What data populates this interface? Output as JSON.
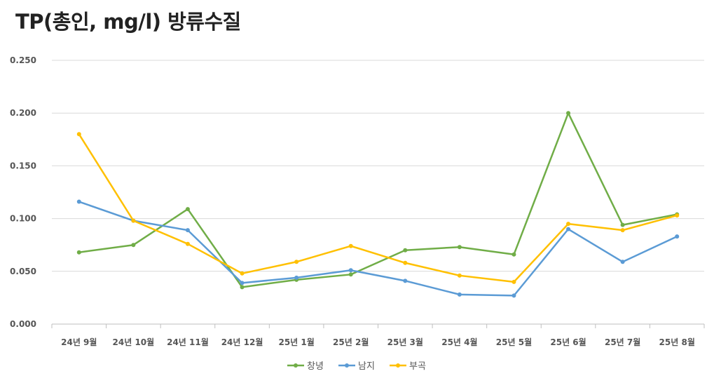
{
  "chart_data": {
    "type": "line",
    "title": "TP(총인, mg/l) 방류수질",
    "xlabel": "",
    "ylabel": "",
    "ylim": [
      0,
      0.25
    ],
    "yticks": [
      "0.000",
      "0.050",
      "0.100",
      "0.150",
      "0.200",
      "0.250"
    ],
    "grid": true,
    "legend": "bottom",
    "categories": [
      "24년 9월",
      "24년 10월",
      "24년 11월",
      "24년 12월",
      "25년 1월",
      "25년 2월",
      "25년 3월",
      "25년 4월",
      "25년 5월",
      "25년 6월",
      "25년 7월",
      "25년 8월"
    ],
    "series": [
      {
        "name": "창녕",
        "color": "#70AD47",
        "values": [
          0.068,
          0.075,
          0.109,
          0.035,
          0.042,
          0.047,
          0.07,
          0.073,
          0.066,
          0.2,
          0.094,
          0.104
        ]
      },
      {
        "name": "남지",
        "color": "#5B9BD5",
        "values": [
          0.116,
          0.098,
          0.089,
          0.039,
          0.044,
          0.051,
          0.041,
          0.028,
          0.027,
          0.09,
          0.059,
          0.083
        ]
      },
      {
        "name": "부곡",
        "color": "#FFC000",
        "values": [
          0.18,
          0.098,
          0.076,
          0.048,
          0.059,
          0.074,
          0.058,
          0.046,
          0.04,
          0.095,
          0.089,
          0.103
        ]
      }
    ]
  }
}
